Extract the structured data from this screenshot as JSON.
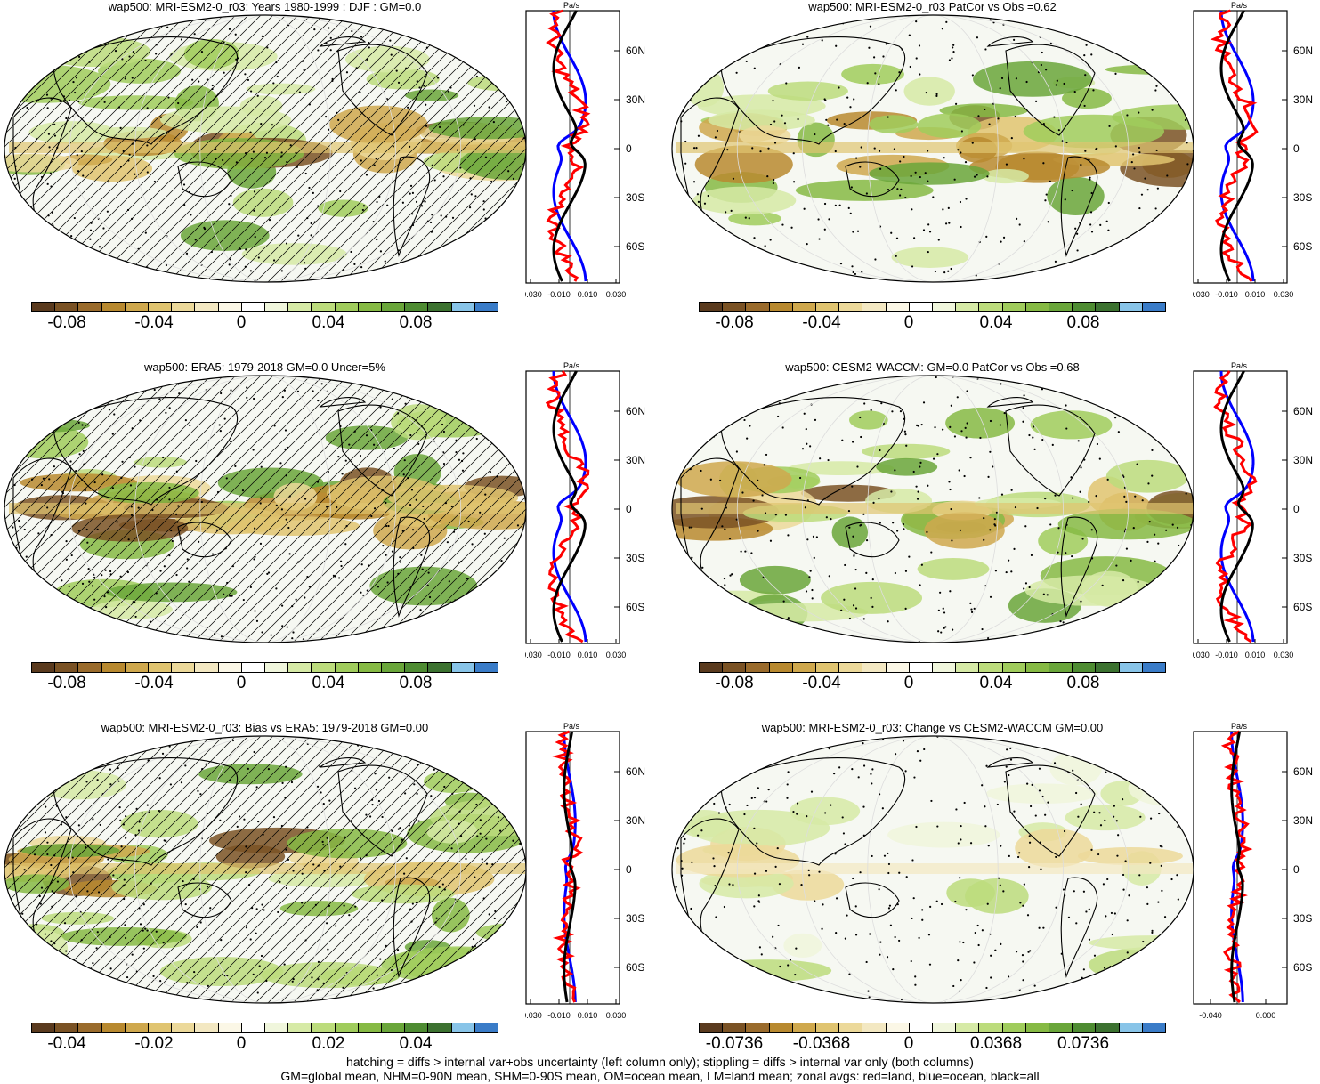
{
  "colors": {
    "palette": [
      "#5a3a1e",
      "#7a5224",
      "#9a6b2c",
      "#b8892f",
      "#cfa84d",
      "#e0c470",
      "#ecd99a",
      "#f3e8c2",
      "#fbf7e6",
      "#ffffff",
      "#f0f6dc",
      "#d6eaa6",
      "#bcdc7c",
      "#a0cc5c",
      "#86ba44",
      "#6aa63a",
      "#4e8c32",
      "#3c7230",
      "#88c4e8",
      "#3a7cc8"
    ],
    "ocean_bg": "#ffffff",
    "land_line": "#000000",
    "zonal_land": "#ff0000",
    "zonal_ocean": "#0000ff",
    "zonal_all": "#000000"
  },
  "panels": [
    {
      "id": "p1",
      "title": "wap500: MRI-ESM2-0_r03: Years 1980-1999 : DJF : GM=0.0",
      "hatching": true,
      "cbar_labels": [
        "-0.08",
        "-0.04",
        "0",
        "0.04",
        "0.08"
      ],
      "zonal_unit": "Pa/s",
      "zonal_ticks": [
        "-0.030",
        "-0.010",
        "0.010",
        "0.030"
      ],
      "lat_labels": [
        "60N",
        "30N",
        "0",
        "30S",
        "60S"
      ]
    },
    {
      "id": "p2",
      "title": "wap500: MRI-ESM2-0_r03 PatCor vs Obs =0.62",
      "hatching": false,
      "cbar_labels": [
        "-0.08",
        "-0.04",
        "0",
        "0.04",
        "0.08"
      ],
      "zonal_unit": "Pa/s",
      "zonal_ticks": [
        "-0.030",
        "-0.010",
        "0.010",
        "0.030"
      ],
      "lat_labels": [
        "60N",
        "30N",
        "0",
        "30S",
        "60S"
      ]
    },
    {
      "id": "p3",
      "title": "wap500: ERA5: 1979-2018 GM=0.0 Uncer=5%",
      "hatching": true,
      "cbar_labels": [
        "-0.08",
        "-0.04",
        "0",
        "0.04",
        "0.08"
      ],
      "zonal_unit": "Pa/s",
      "zonal_ticks": [
        "-0.030",
        "-0.010",
        "0.010",
        "0.030"
      ],
      "lat_labels": [
        "60N",
        "30N",
        "0",
        "30S",
        "60S"
      ]
    },
    {
      "id": "p4",
      "title": "wap500: CESM2-WACCM: GM=0.0 PatCor vs Obs =0.68",
      "hatching": false,
      "cbar_labels": [
        "-0.08",
        "-0.04",
        "0",
        "0.04",
        "0.08"
      ],
      "zonal_unit": "Pa/s",
      "zonal_ticks": [
        "-0.030",
        "-0.010",
        "0.010",
        "0.030"
      ],
      "lat_labels": [
        "60N",
        "30N",
        "0",
        "30S",
        "60S"
      ]
    },
    {
      "id": "p5",
      "title": "wap500: MRI-ESM2-0_r03: Bias vs ERA5: 1979-2018 GM=0.00",
      "hatching": true,
      "cbar_labels": [
        "-0.04",
        "-0.02",
        "0",
        "0.02",
        "0.04"
      ],
      "zonal_unit": "Pa/s",
      "zonal_ticks": [
        "-0.030",
        "-0.010",
        "0.010",
        "0.030"
      ],
      "lat_labels": [
        "60N",
        "30N",
        "0",
        "30S",
        "60S"
      ]
    },
    {
      "id": "p6",
      "title": "wap500: MRI-ESM2-0_r03: Change vs CESM2-WACCM GM=0.00",
      "hatching": false,
      "cbar_labels": [
        "-0.0736",
        "-0.0368",
        "0",
        "0.0368",
        "0.0736"
      ],
      "zonal_unit": "Pa/s",
      "zonal_ticks": [
        "-0.040",
        "0.000"
      ],
      "lat_labels": [
        "60N",
        "30N",
        "0",
        "30S",
        "60S"
      ]
    }
  ],
  "footer": {
    "line1": "hatching = diffs > internal var+obs uncertainty (left column only); stippling = diffs > internal var only (both columns)",
    "line2": "GM=global mean, NHM=0-90N mean, SHM=0-90S mean, OM=ocean mean, LM=land mean; zonal avgs: red=land, blue=ocean, black=all"
  }
}
